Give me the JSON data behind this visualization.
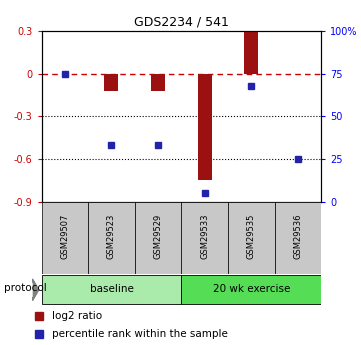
{
  "title": "GDS2234 / 541",
  "samples": [
    "GSM29507",
    "GSM29523",
    "GSM29529",
    "GSM29533",
    "GSM29535",
    "GSM29536"
  ],
  "log2_ratios": [
    0.0,
    -0.12,
    -0.12,
    -0.75,
    0.3,
    0.0
  ],
  "percentile_ranks": [
    75,
    33,
    33,
    5,
    68,
    25
  ],
  "ylim_left": [
    -0.9,
    0.3
  ],
  "ylim_right": [
    0,
    100
  ],
  "yticks_left": [
    -0.9,
    -0.6,
    -0.3,
    0.0,
    0.3
  ],
  "yticks_right": [
    0,
    25,
    50,
    75,
    100
  ],
  "ytick_labels_left": [
    "-0.9",
    "-0.6",
    "-0.3",
    "0",
    "0.3"
  ],
  "ytick_labels_right": [
    "0",
    "25",
    "50",
    "75",
    "100%"
  ],
  "bar_color": "#9B1010",
  "square_color": "#2222AA",
  "dashed_line_color": "#CC0000",
  "group1_label": "baseline",
  "group1_indices": [
    0,
    1,
    2
  ],
  "group1_color": "#AAEAAA",
  "group2_label": "20 wk exercise",
  "group2_indices": [
    3,
    4,
    5
  ],
  "group2_color": "#55DD55",
  "protocol_label": "protocol",
  "legend_red_label": "log2 ratio",
  "legend_blue_label": "percentile rank within the sample",
  "background_color": "#ffffff",
  "bar_width": 0.3,
  "sample_box_color": "#C8C8C8",
  "title_fontsize": 9
}
